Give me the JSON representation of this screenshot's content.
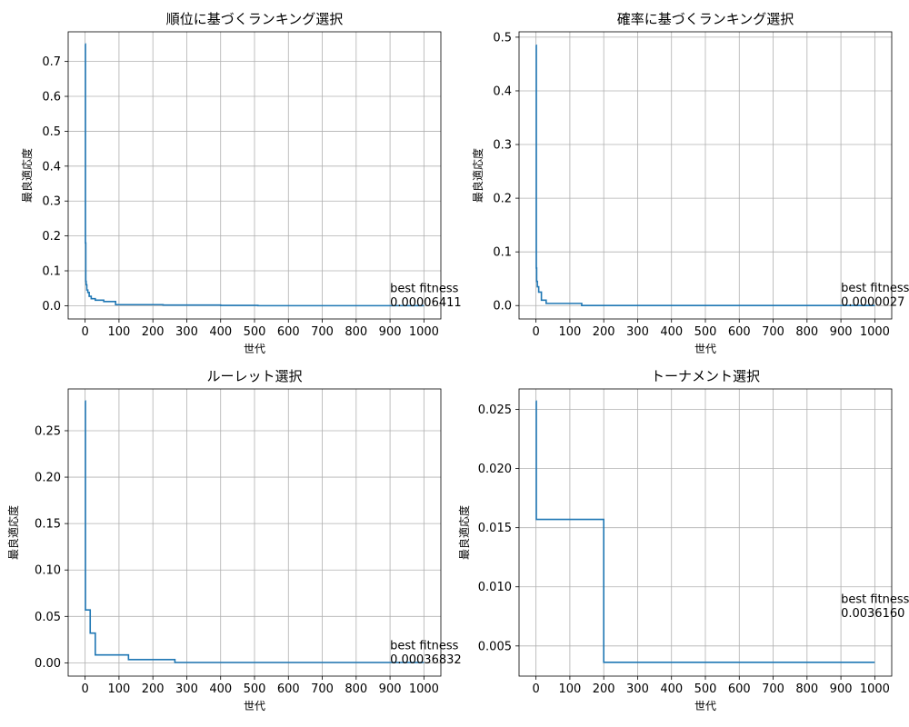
{
  "chart_data": [
    {
      "type": "line",
      "title": "順位に基づくランキング選択",
      "xlabel": "世代",
      "ylabel": "最良適応度",
      "xlim": [
        -50,
        1050
      ],
      "ylim": [
        -0.038,
        0.785
      ],
      "xticks": [
        0,
        100,
        200,
        300,
        400,
        500,
        600,
        700,
        800,
        900,
        1000
      ],
      "yticks": [
        0.0,
        0.1,
        0.2,
        0.3,
        0.4,
        0.5,
        0.6,
        0.7
      ],
      "ytick_decimals": 1,
      "grid": true,
      "color": "#1f77b4",
      "series": [
        {
          "x": [
            0,
            1,
            1,
            2,
            2,
            3,
            3,
            5,
            5,
            8,
            8,
            12,
            12,
            18,
            18,
            30,
            30,
            55,
            55,
            90,
            90,
            230,
            230,
            400,
            400,
            510,
            510,
            1000
          ],
          "y": [
            0.75,
            0.75,
            0.18,
            0.18,
            0.07,
            0.07,
            0.06,
            0.06,
            0.045,
            0.045,
            0.038,
            0.038,
            0.027,
            0.027,
            0.02,
            0.02,
            0.016,
            0.016,
            0.012,
            0.012,
            0.003,
            0.003,
            0.0018,
            0.0018,
            0.001,
            0.001,
            6.411e-05,
            6.411e-05
          ]
        }
      ],
      "annotation": {
        "label": "best fitness",
        "value": "0.00006411",
        "x": 900,
        "y": 0.0
      }
    },
    {
      "type": "line",
      "title": "確率に基づくランキング選択",
      "xlabel": "世代",
      "ylabel": "最良適応度",
      "xlim": [
        -50,
        1050
      ],
      "ylim": [
        -0.025,
        0.51
      ],
      "xticks": [
        0,
        100,
        200,
        300,
        400,
        500,
        600,
        700,
        800,
        900,
        1000
      ],
      "yticks": [
        0.0,
        0.1,
        0.2,
        0.3,
        0.4,
        0.5
      ],
      "ytick_decimals": 1,
      "grid": true,
      "color": "#1f77b4",
      "series": [
        {
          "x": [
            0,
            1,
            1,
            2,
            2,
            4,
            4,
            8,
            8,
            16,
            16,
            30,
            30,
            135,
            135,
            1000
          ],
          "y": [
            0.485,
            0.485,
            0.07,
            0.07,
            0.045,
            0.045,
            0.035,
            0.035,
            0.025,
            0.025,
            0.01,
            0.01,
            0.004,
            0.004,
            2.7e-06,
            2.7e-06
          ]
        }
      ],
      "annotation": {
        "label": "best fitness",
        "value": "0.0000027",
        "x": 900,
        "y": 0.0
      }
    },
    {
      "type": "line",
      "title": "ルーレット選択",
      "xlabel": "世代",
      "ylabel": "最良適応度",
      "xlim": [
        -50,
        1050
      ],
      "ylim": [
        -0.0143,
        0.295
      ],
      "xticks": [
        0,
        100,
        200,
        300,
        400,
        500,
        600,
        700,
        800,
        900,
        1000
      ],
      "yticks": [
        0.0,
        0.05,
        0.1,
        0.15,
        0.2,
        0.25
      ],
      "ytick_decimals": 2,
      "grid": true,
      "color": "#1f77b4",
      "series": [
        {
          "x": [
            0,
            1,
            1,
            15,
            15,
            30,
            30,
            128,
            128,
            265,
            265,
            1000
          ],
          "y": [
            0.282,
            0.282,
            0.057,
            0.057,
            0.032,
            0.032,
            0.0085,
            0.0085,
            0.0035,
            0.0035,
            0.00036832,
            0.00036832
          ]
        }
      ],
      "annotation": {
        "label": "best fitness",
        "value": "0.00036832",
        "x": 900,
        "y": 0.0
      }
    },
    {
      "type": "line",
      "title": "トーナメント選択",
      "xlabel": "世代",
      "ylabel": "最良適応度",
      "xlim": [
        -50,
        1050
      ],
      "ylim": [
        0.00245,
        0.02673
      ],
      "xticks": [
        0,
        100,
        200,
        300,
        400,
        500,
        600,
        700,
        800,
        900,
        1000
      ],
      "yticks": [
        0.005,
        0.01,
        0.015,
        0.02,
        0.025
      ],
      "ytick_decimals": 3,
      "grid": true,
      "color": "#1f77b4",
      "series": [
        {
          "x": [
            0,
            1,
            1,
            200,
            200,
            1000
          ],
          "y": [
            0.0257,
            0.0257,
            0.0157,
            0.0157,
            0.003616,
            0.003616
          ]
        }
      ],
      "annotation": {
        "label": "best fitness",
        "value": "0.0036160",
        "x": 900,
        "y": 0.0075
      }
    }
  ]
}
